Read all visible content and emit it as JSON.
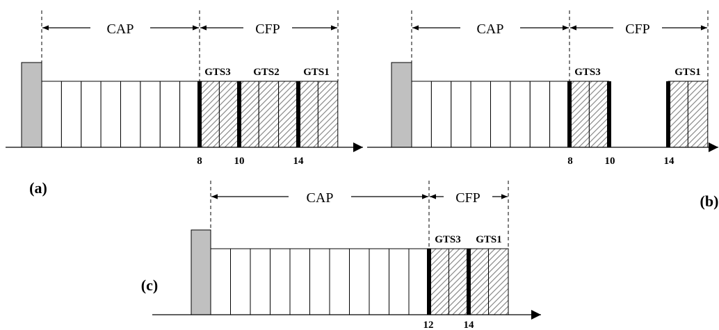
{
  "panels": [
    {
      "id": "a",
      "label": "(a)",
      "cap_label": "CAP",
      "cfp_label": "CFP",
      "gts_labels": [
        "GTS3",
        "GTS2",
        "GTS1"
      ],
      "tick_labels": [
        "8",
        "10",
        "14"
      ]
    },
    {
      "id": "b",
      "label": "(b)",
      "cap_label": "CAP",
      "cfp_label": "CFP",
      "gts_labels": [
        "GTS3",
        "GTS1"
      ],
      "tick_labels": [
        "8",
        "10",
        "14"
      ]
    },
    {
      "id": "c",
      "label": "(c)",
      "cap_label": "CAP",
      "cfp_label": "CFP",
      "gts_labels": [
        "GTS3",
        "GTS1"
      ],
      "tick_labels": [
        "12",
        "14"
      ]
    }
  ]
}
